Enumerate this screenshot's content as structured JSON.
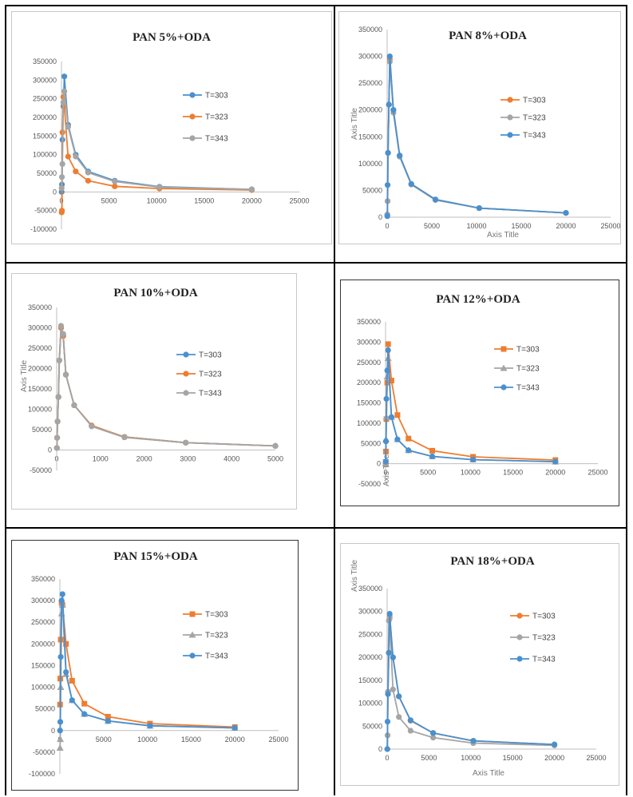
{
  "colors": {
    "blue": "#4a90cf",
    "orange": "#ed7d31",
    "gray": "#a5a5a5"
  },
  "chart_data": [
    {
      "id": "c1",
      "type": "scatter",
      "title": "PAN 5%+ODA",
      "xlabel": "",
      "ylabel": "",
      "xlim": [
        0,
        25000
      ],
      "ylim": [
        -100000,
        350000
      ],
      "xticks": [
        0,
        5000,
        10000,
        15000,
        20000,
        25000
      ],
      "yticks": [
        -100000,
        -50000,
        0,
        50000,
        100000,
        150000,
        200000,
        250000,
        300000,
        350000
      ],
      "series": [
        {
          "name": "T=303",
          "color": "#4a90cf",
          "marker": "circle",
          "x": [
            20,
            50,
            100,
            200,
            300,
            700,
            1500,
            2800,
            5600,
            10300,
            20000
          ],
          "y": [
            0,
            20000,
            140000,
            230000,
            310000,
            180000,
            100000,
            55000,
            30000,
            14000,
            7000
          ]
        },
        {
          "name": "T=323",
          "color": "#ed7d31",
          "marker": "circle",
          "x": [
            20,
            50,
            100,
            200,
            300,
            700,
            1500,
            2800,
            5600,
            10300,
            20000
          ],
          "y": [
            -55000,
            -50000,
            160000,
            255000,
            230000,
            95000,
            55000,
            30000,
            15000,
            9000,
            5000
          ]
        },
        {
          "name": "T=343",
          "color": "#a5a5a5",
          "marker": "circle",
          "x": [
            20,
            50,
            100,
            200,
            300,
            700,
            1500,
            2800,
            5600,
            10300,
            20000
          ],
          "y": [
            10000,
            40000,
            75000,
            240000,
            270000,
            175000,
            95000,
            52000,
            28000,
            13000,
            6500
          ]
        }
      ]
    },
    {
      "id": "c2",
      "type": "scatter",
      "title": "PAN 8%+ODA",
      "xlabel": "Axis Title",
      "ylabel": "Axis Title",
      "xlim": [
        0,
        25000
      ],
      "ylim": [
        0,
        350000
      ],
      "xticks": [
        0,
        5000,
        10000,
        15000,
        20000,
        25000
      ],
      "yticks": [
        0,
        50000,
        100000,
        150000,
        200000,
        250000,
        300000,
        350000
      ],
      "series": [
        {
          "name": "T=303",
          "color": "#ed7d31",
          "marker": "circle",
          "x": [
            20,
            50,
            100,
            200,
            300,
            700,
            1400,
            2700,
            5400,
            10300,
            20000
          ],
          "y": [
            5000,
            30000,
            120000,
            210000,
            295000,
            200000,
            115000,
            62000,
            33000,
            17000,
            8000
          ]
        },
        {
          "name": "T=323",
          "color": "#a5a5a5",
          "marker": "circle",
          "x": [
            20,
            50,
            100,
            200,
            300,
            700,
            1400,
            2700,
            5400,
            10300,
            20000
          ],
          "y": [
            5000,
            30000,
            120000,
            210000,
            290000,
            195000,
            113000,
            61000,
            32000,
            17000,
            8000
          ]
        },
        {
          "name": "T=343",
          "color": "#4a90cf",
          "marker": "circle",
          "x": [
            20,
            50,
            100,
            200,
            300,
            700,
            1400,
            2700,
            5400,
            10300,
            20000
          ],
          "y": [
            2000,
            60000,
            120000,
            210000,
            300000,
            200000,
            115000,
            62000,
            33000,
            17000,
            8000
          ]
        }
      ]
    },
    {
      "id": "c3",
      "type": "scatter",
      "title": "PAN 10%+ODA",
      "xlabel": "",
      "ylabel": "Axis Title",
      "xlim": [
        0,
        5000
      ],
      "ylim": [
        -50000,
        350000
      ],
      "xticks": [
        0,
        1000,
        2000,
        3000,
        4000,
        5000
      ],
      "yticks": [
        -50000,
        0,
        50000,
        100000,
        150000,
        200000,
        250000,
        300000,
        350000
      ],
      "series": [
        {
          "name": "T=303",
          "color": "#4a90cf",
          "marker": "circle",
          "x": [
            5,
            10,
            20,
            40,
            60,
            100,
            150,
            210,
            400,
            800,
            1550,
            2950,
            5000
          ],
          "y": [
            5000,
            30000,
            70000,
            130000,
            220000,
            300000,
            280000,
            185000,
            110000,
            60000,
            32000,
            18000,
            10000
          ]
        },
        {
          "name": "T=323",
          "color": "#ed7d31",
          "marker": "circle",
          "x": [
            5,
            10,
            20,
            40,
            60,
            100,
            150,
            210,
            400,
            800,
            1550,
            2950,
            5000
          ],
          "y": [
            5000,
            30000,
            70000,
            130000,
            220000,
            300000,
            280000,
            185000,
            110000,
            60000,
            32000,
            18000,
            10000
          ]
        },
        {
          "name": "T=343",
          "color": "#a5a5a5",
          "marker": "circle",
          "x": [
            5,
            10,
            20,
            40,
            60,
            100,
            150,
            210,
            400,
            800,
            1550,
            2950,
            5000
          ],
          "y": [
            5000,
            30000,
            70000,
            130000,
            220000,
            305000,
            285000,
            185000,
            110000,
            58000,
            31000,
            18000,
            10000
          ]
        }
      ]
    },
    {
      "id": "c4",
      "type": "scatter",
      "title": "PAN 12%+ODA",
      "xlabel": "",
      "ylabel": "Axis Title",
      "xlim": [
        0,
        25000
      ],
      "ylim": [
        -50000,
        350000
      ],
      "xticks": [
        0,
        5000,
        10000,
        15000,
        20000,
        25000
      ],
      "yticks": [
        -50000,
        0,
        50000,
        100000,
        150000,
        200000,
        250000,
        300000,
        350000
      ],
      "series": [
        {
          "name": "T=303",
          "color": "#ed7d31",
          "marker": "square",
          "x": [
            20,
            50,
            100,
            200,
            300,
            700,
            1400,
            2700,
            5500,
            10300,
            20000
          ],
          "y": [
            0,
            30000,
            110000,
            200000,
            295000,
            205000,
            120000,
            62000,
            32000,
            17000,
            9000
          ]
        },
        {
          "name": "T=323",
          "color": "#a5a5a5",
          "marker": "triangle",
          "x": [
            20,
            50,
            100,
            200,
            300,
            700,
            1400,
            2700,
            5500,
            10300,
            20000
          ],
          "y": [
            0,
            60000,
            115000,
            215000,
            260000,
            115000,
            60000,
            33000,
            18000,
            10000,
            5000
          ]
        },
        {
          "name": "T=343",
          "color": "#4a90cf",
          "marker": "circle",
          "x": [
            20,
            50,
            100,
            200,
            300,
            700,
            1400,
            2700,
            5500,
            10300,
            20000
          ],
          "y": [
            5000,
            55000,
            160000,
            230000,
            280000,
            115000,
            60000,
            33000,
            18000,
            10000,
            5000
          ]
        }
      ]
    },
    {
      "id": "c5",
      "type": "scatter",
      "title": "PAN 15%+ODA",
      "xlabel": "",
      "ylabel": "",
      "xlim": [
        0,
        25000
      ],
      "ylim": [
        -100000,
        350000
      ],
      "xticks": [
        0,
        5000,
        10000,
        15000,
        20000,
        25000
      ],
      "yticks": [
        -100000,
        -50000,
        0,
        50000,
        100000,
        150000,
        200000,
        250000,
        300000,
        350000
      ],
      "series": [
        {
          "name": "T=303",
          "color": "#ed7d31",
          "marker": "square",
          "x": [
            20,
            50,
            100,
            200,
            300,
            700,
            1400,
            2800,
            5500,
            10300,
            20000
          ],
          "y": [
            60000,
            120000,
            210000,
            295000,
            290000,
            200000,
            115000,
            62000,
            32000,
            16000,
            8000
          ]
        },
        {
          "name": "T=323",
          "color": "#a5a5a5",
          "marker": "triangle",
          "x": [
            20,
            50,
            100,
            200,
            300,
            700,
            1400,
            2800,
            5500,
            10300,
            20000
          ],
          "y": [
            -40000,
            -20000,
            100000,
            270000,
            290000,
            130000,
            70000,
            38000,
            22000,
            11000,
            6000
          ]
        },
        {
          "name": "T=343",
          "color": "#4a90cf",
          "marker": "circle",
          "x": [
            20,
            50,
            100,
            200,
            300,
            700,
            1400,
            2800,
            5500,
            10300,
            20000
          ],
          "y": [
            0,
            20000,
            170000,
            300000,
            315000,
            135000,
            70000,
            38000,
            22000,
            11000,
            6000
          ]
        }
      ]
    },
    {
      "id": "c6",
      "type": "scatter",
      "title": "PAN 18%+ODA",
      "xlabel": "Axis Title",
      "ylabel": "Axis Title",
      "xlim": [
        0,
        25000
      ],
      "ylim": [
        0,
        350000
      ],
      "xticks": [
        0,
        5000,
        10000,
        15000,
        20000,
        25000
      ],
      "yticks": [
        0,
        50000,
        100000,
        150000,
        200000,
        250000,
        300000,
        350000
      ],
      "series": [
        {
          "name": "T=303",
          "color": "#ed7d31",
          "marker": "circle",
          "x": [
            20,
            50,
            100,
            200,
            300,
            700,
            1400,
            2800,
            5500,
            10300,
            20000
          ],
          "y": [
            0,
            30000,
            125000,
            210000,
            290000,
            200000,
            115000,
            62000,
            35000,
            18000,
            10000
          ]
        },
        {
          "name": "T=323",
          "color": "#a5a5a5",
          "marker": "circle",
          "x": [
            20,
            50,
            100,
            200,
            300,
            700,
            1400,
            2800,
            5500,
            10300,
            20000
          ],
          "y": [
            0,
            30000,
            125000,
            280000,
            285000,
            130000,
            70000,
            40000,
            25000,
            13000,
            8000
          ]
        },
        {
          "name": "T=343",
          "color": "#4a90cf",
          "marker": "circle",
          "x": [
            20,
            50,
            100,
            200,
            300,
            700,
            1400,
            2800,
            5500,
            10300,
            20000
          ],
          "y": [
            0,
            60000,
            120000,
            210000,
            295000,
            200000,
            115000,
            63000,
            35000,
            18000,
            10000
          ]
        }
      ]
    }
  ]
}
